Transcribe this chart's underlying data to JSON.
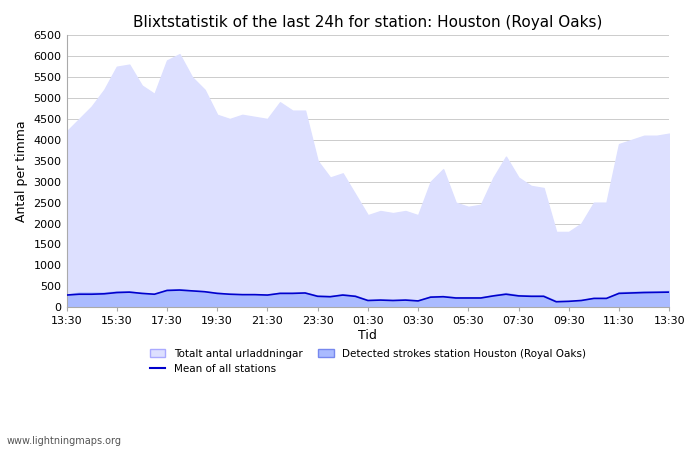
{
  "title": "Blixtstatistik of the last 24h for station: Houston (Royal Oaks)",
  "xlabel": "Tid",
  "ylabel": "Antal per timma",
  "xlim": [
    0,
    24
  ],
  "ylim": [
    0,
    6500
  ],
  "yticks": [
    0,
    500,
    1000,
    1500,
    2000,
    2500,
    3000,
    3500,
    4000,
    4500,
    5000,
    5500,
    6000,
    6500
  ],
  "xtick_labels": [
    "13:30",
    "15:30",
    "17:30",
    "19:30",
    "21:30",
    "23:30",
    "01:30",
    "03:30",
    "05:30",
    "07:30",
    "09:30",
    "11:30",
    "13:30"
  ],
  "xtick_positions": [
    0,
    2,
    4,
    6,
    8,
    10,
    12,
    14,
    16,
    18,
    20,
    22,
    24
  ],
  "watermark": "www.lightningmaps.org",
  "legend": [
    {
      "label": "Totalt antal urladdningar",
      "color": "#ccccff",
      "type": "fill"
    },
    {
      "label": "Mean of all stations",
      "color": "#0000cc",
      "type": "line"
    },
    {
      "label": "Detected strokes station Houston (Royal Oaks)",
      "color": "#8888ff",
      "type": "fill"
    }
  ],
  "total_x": [
    0,
    0.5,
    1,
    1.5,
    2,
    2.5,
    3,
    3.5,
    4,
    4.5,
    5,
    5.5,
    6,
    6.5,
    7,
    7.5,
    8,
    8.5,
    9,
    9.5,
    10,
    10.5,
    11,
    11.5,
    12,
    12.5,
    13,
    13.5,
    14,
    14.5,
    15,
    15.5,
    16,
    16.5,
    17,
    17.5,
    18,
    18.5,
    19,
    19.5,
    20,
    20.5,
    21,
    21.5,
    22,
    22.5,
    23,
    23.5,
    24
  ],
  "total_y": [
    4200,
    4500,
    4800,
    5200,
    5750,
    5800,
    5300,
    5100,
    5900,
    6050,
    5500,
    5200,
    4600,
    4500,
    4600,
    4550,
    4500,
    4900,
    4700,
    4700,
    3500,
    3100,
    3200,
    2700,
    2200,
    2300,
    2250,
    2300,
    2200,
    3000,
    3300,
    2500,
    2400,
    2450,
    3100,
    3600,
    3100,
    2900,
    2850,
    1800,
    1800,
    2000,
    2500,
    2500,
    3900,
    4000,
    4100,
    4100,
    4150
  ],
  "station_x": [
    0,
    0.5,
    1,
    1.5,
    2,
    2.5,
    3,
    3.5,
    4,
    4.5,
    5,
    5.5,
    6,
    6.5,
    7,
    7.5,
    8,
    8.5,
    9,
    9.5,
    10,
    10.5,
    11,
    11.5,
    12,
    12.5,
    13,
    13.5,
    14,
    14.5,
    15,
    15.5,
    16,
    16.5,
    17,
    17.5,
    18,
    18.5,
    19,
    19.5,
    20,
    20.5,
    21,
    21.5,
    22,
    22.5,
    23,
    23.5,
    24
  ],
  "station_y": [
    300,
    350,
    350,
    350,
    380,
    380,
    340,
    320,
    420,
    430,
    400,
    380,
    350,
    320,
    310,
    310,
    300,
    350,
    350,
    350,
    280,
    270,
    310,
    280,
    170,
    180,
    170,
    180,
    160,
    260,
    270,
    240,
    240,
    240,
    290,
    340,
    290,
    280,
    280,
    150,
    150,
    170,
    220,
    220,
    360,
    370,
    380,
    380,
    390
  ],
  "mean_x": [
    0,
    0.5,
    1,
    1.5,
    2,
    2.5,
    3,
    3.5,
    4,
    4.5,
    5,
    5.5,
    6,
    6.5,
    7,
    7.5,
    8,
    8.5,
    9,
    9.5,
    10,
    10.5,
    11,
    11.5,
    12,
    12.5,
    13,
    13.5,
    14,
    14.5,
    15,
    15.5,
    16,
    16.5,
    17,
    17.5,
    18,
    18.5,
    19,
    19.5,
    20,
    20.5,
    21,
    21.5,
    22,
    22.5,
    23,
    23.5,
    24
  ],
  "mean_y": [
    290,
    310,
    310,
    320,
    350,
    360,
    330,
    310,
    400,
    410,
    390,
    370,
    330,
    310,
    300,
    300,
    290,
    330,
    330,
    340,
    260,
    250,
    290,
    260,
    160,
    170,
    160,
    170,
    150,
    240,
    250,
    220,
    220,
    220,
    270,
    310,
    270,
    260,
    260,
    130,
    140,
    160,
    210,
    210,
    330,
    340,
    350,
    355,
    360
  ],
  "fill_color_total": "#dde0ff",
  "fill_color_station": "#aabbff",
  "line_color_mean": "#0000cc",
  "background_color": "#ffffff",
  "grid_color": "#cccccc",
  "title_fontsize": 11,
  "axis_fontsize": 9,
  "tick_fontsize": 8
}
